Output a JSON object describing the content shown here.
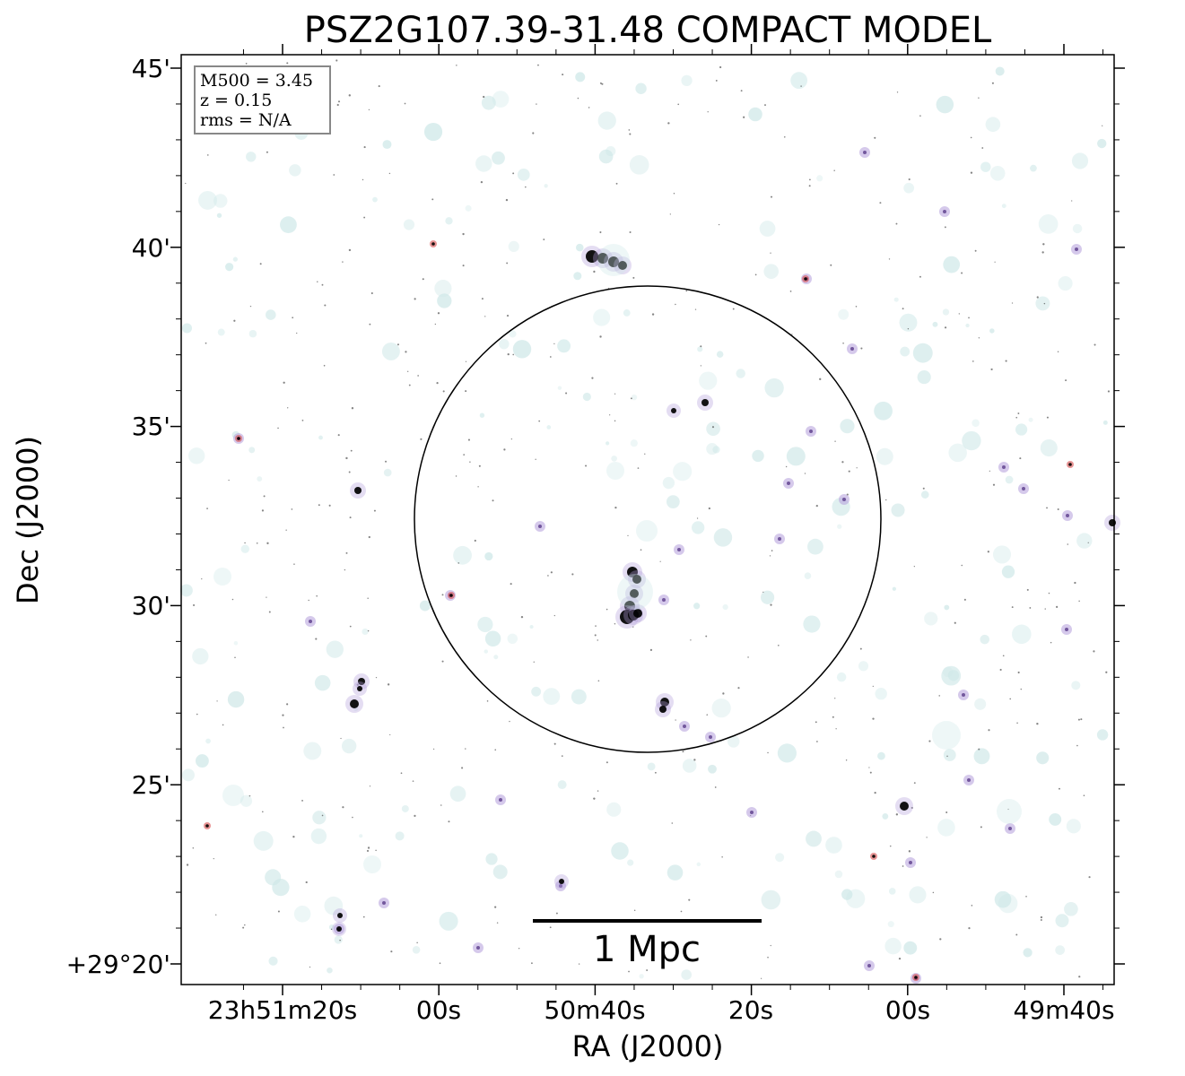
{
  "title": "PSZ2G107.39-31.48 COMPACT MODEL",
  "info_box": {
    "mass": "M500 = 3.45",
    "redshift": "z = 0.15",
    "rms": "rms = N/A"
  },
  "axes": {
    "x_label": "RA (J2000)",
    "y_label": "Dec (J2000)",
    "x_ticks": [
      "23h51m20s",
      "00s",
      "50m40s",
      "20s",
      "00s",
      "49m40s"
    ],
    "y_ticks": [
      "45'",
      "40'",
      "35'",
      "30'",
      "25'",
      "+29°20'"
    ]
  },
  "scalebar": {
    "label": "1 Mpc"
  },
  "colors": {
    "background": "#ffffff",
    "frame": "#000000",
    "info_box_border": "#888888",
    "diffuse_emission": "#cfe8e8",
    "point_source_core": "#000000",
    "source_halo_purple": "#b39ddb",
    "source_halo_red": "#d94f4f"
  }
}
